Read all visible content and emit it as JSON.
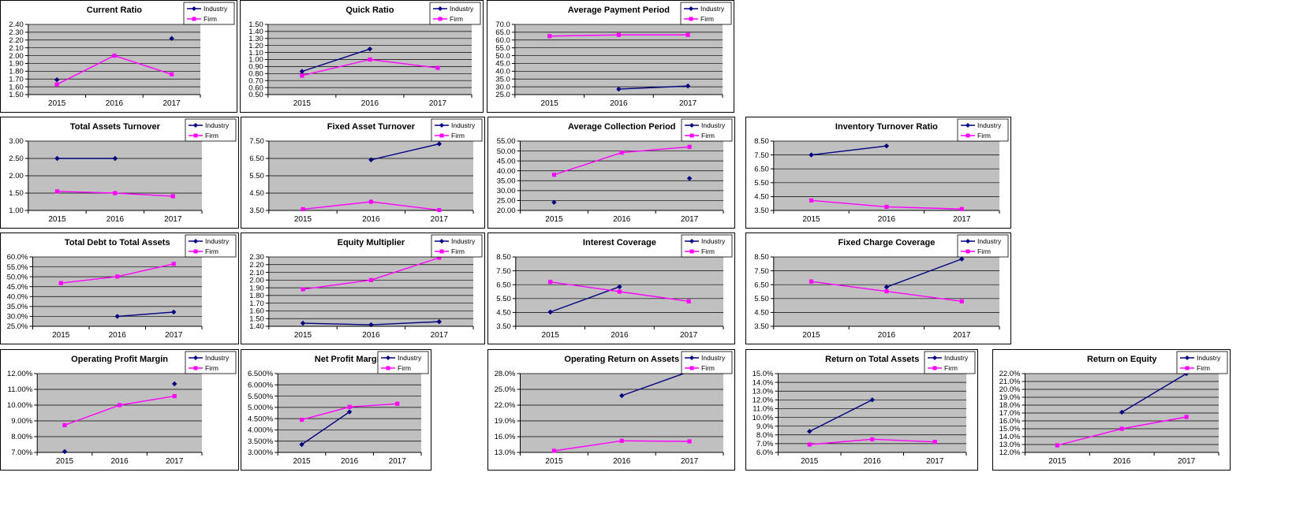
{
  "colors": {
    "industry": "#000080",
    "firm": "#FF00FF",
    "plot_bg": "#C0C0C0",
    "grid": "#000000",
    "panel_border": "#000000",
    "background": "#FFFFFF"
  },
  "legend": {
    "industry_label": "Industry",
    "firm_label": "Firm",
    "position": "top-right"
  },
  "chart_data": [
    {
      "type": "line",
      "title": "Current Ratio",
      "categories": [
        "2015",
        "2016",
        "2017"
      ],
      "series": [
        {
          "name": "Industry",
          "color": "#000080",
          "marker": "diamond",
          "values": [
            1.69,
            null,
            2.22
          ]
        },
        {
          "name": "Firm",
          "color": "#FF00FF",
          "marker": "square",
          "values": [
            1.63,
            2.0,
            1.76
          ]
        }
      ],
      "ylim": [
        1.5,
        2.4
      ],
      "ytick_step": 0.1,
      "tick_format": {
        "decimals": 2,
        "percent": false
      },
      "grid": true,
      "legend_position": "top-right"
    },
    {
      "type": "line",
      "title": "Quick Ratio",
      "categories": [
        "2015",
        "2016",
        "2017"
      ],
      "series": [
        {
          "name": "Industry",
          "color": "#000080",
          "marker": "diamond",
          "values": [
            0.83,
            1.15,
            null
          ]
        },
        {
          "name": "Firm",
          "color": "#FF00FF",
          "marker": "square",
          "values": [
            0.77,
            1.0,
            0.88
          ]
        }
      ],
      "ylim": [
        0.5,
        1.5
      ],
      "ytick_step": 0.1,
      "tick_format": {
        "decimals": 2,
        "percent": false
      },
      "grid": true,
      "legend_position": "top-right"
    },
    {
      "type": "line",
      "title": "Average Payment Period",
      "categories": [
        "2015",
        "2016",
        "2017"
      ],
      "series": [
        {
          "name": "Industry",
          "color": "#000080",
          "marker": "diamond",
          "values": [
            null,
            28.5,
            30.5
          ]
        },
        {
          "name": "Firm",
          "color": "#FF00FF",
          "marker": "square",
          "values": [
            62.5,
            63.3,
            63.3
          ]
        }
      ],
      "ylim": [
        25.0,
        70.0
      ],
      "ytick_step": 5.0,
      "tick_format": {
        "decimals": 1,
        "percent": false
      },
      "grid": true,
      "legend_position": "top-right"
    },
    {
      "type": "line",
      "title": "Total Assets Turnover",
      "categories": [
        "2015",
        "2016",
        "2017"
      ],
      "series": [
        {
          "name": "Industry",
          "color": "#000080",
          "marker": "diamond",
          "values": [
            2.5,
            2.5,
            null
          ]
        },
        {
          "name": "Firm",
          "color": "#FF00FF",
          "marker": "square",
          "values": [
            1.55,
            1.5,
            1.41
          ]
        }
      ],
      "ylim": [
        1.0,
        3.0
      ],
      "ytick_step": 0.5,
      "tick_format": {
        "decimals": 2,
        "percent": false
      },
      "grid": true,
      "legend_position": "top-right"
    },
    {
      "type": "line",
      "title": "Fixed Asset Turnover",
      "categories": [
        "2015",
        "2016",
        "2017"
      ],
      "series": [
        {
          "name": "Industry",
          "color": "#000080",
          "marker": "diamond",
          "values": [
            null,
            6.42,
            7.34
          ]
        },
        {
          "name": "Firm",
          "color": "#FF00FF",
          "marker": "square",
          "values": [
            3.57,
            4.0,
            3.52
          ]
        }
      ],
      "ylim": [
        3.5,
        7.5
      ],
      "ytick_step": 1.0,
      "tick_format": {
        "decimals": 2,
        "percent": false
      },
      "grid": true,
      "legend_position": "top-right"
    },
    {
      "type": "line",
      "title": "Average Collection Period",
      "categories": [
        "2015",
        "2016",
        "2017"
      ],
      "series": [
        {
          "name": "Industry",
          "color": "#000080",
          "marker": "diamond",
          "values": [
            24.1,
            null,
            36.2
          ]
        },
        {
          "name": "Firm",
          "color": "#FF00FF",
          "marker": "square",
          "values": [
            38.0,
            49.2,
            52.1
          ]
        }
      ],
      "ylim": [
        20.0,
        55.0
      ],
      "ytick_step": 5.0,
      "tick_format": {
        "decimals": 2,
        "percent": false
      },
      "grid": true,
      "legend_position": "top-right"
    },
    {
      "type": "line",
      "title": "Inventory Turnover Ratio",
      "categories": [
        "2015",
        "2016",
        "2017"
      ],
      "series": [
        {
          "name": "Industry",
          "color": "#000080",
          "marker": "diamond",
          "values": [
            7.5,
            8.15,
            null
          ]
        },
        {
          "name": "Firm",
          "color": "#FF00FF",
          "marker": "square",
          "values": [
            4.22,
            3.76,
            3.6
          ]
        }
      ],
      "ylim": [
        3.5,
        8.5
      ],
      "ytick_step": 1.0,
      "tick_format": {
        "decimals": 2,
        "percent": false
      },
      "grid": true,
      "legend_position": "top-right"
    },
    {
      "type": "line",
      "title": "Total Debt to Total Assets",
      "categories": [
        "2015",
        "2016",
        "2017"
      ],
      "series": [
        {
          "name": "Industry",
          "color": "#000080",
          "marker": "diamond",
          "values": [
            null,
            30.0,
            32.2
          ]
        },
        {
          "name": "Firm",
          "color": "#FF00FF",
          "marker": "square",
          "values": [
            46.8,
            50.1,
            56.5
          ]
        }
      ],
      "ylim": [
        25.0,
        60.0
      ],
      "ytick_step": 5.0,
      "tick_format": {
        "decimals": 1,
        "percent": true
      },
      "grid": true,
      "legend_position": "top-right"
    },
    {
      "type": "line",
      "title": "Equity Multiplier",
      "categories": [
        "2015",
        "2016",
        "2017"
      ],
      "series": [
        {
          "name": "Industry",
          "color": "#000080",
          "marker": "diamond",
          "values": [
            1.44,
            1.42,
            1.46
          ]
        },
        {
          "name": "Firm",
          "color": "#FF00FF",
          "marker": "square",
          "values": [
            1.88,
            2.0,
            2.29
          ]
        }
      ],
      "ylim": [
        1.4,
        2.3
      ],
      "ytick_step": 0.1,
      "tick_format": {
        "decimals": 2,
        "percent": false
      },
      "grid": true,
      "legend_position": "top-right"
    },
    {
      "type": "line",
      "title": "Interest Coverage",
      "categories": [
        "2015",
        "2016",
        "2017"
      ],
      "series": [
        {
          "name": "Industry",
          "color": "#000080",
          "marker": "diamond",
          "values": [
            4.53,
            6.35,
            null
          ]
        },
        {
          "name": "Firm",
          "color": "#FF00FF",
          "marker": "square",
          "values": [
            6.7,
            6.0,
            5.3
          ]
        }
      ],
      "ylim": [
        3.5,
        8.5
      ],
      "ytick_step": 1.0,
      "tick_format": {
        "decimals": 2,
        "percent": false
      },
      "grid": true,
      "legend_position": "top-right"
    },
    {
      "type": "line",
      "title": "Fixed Charge Coverage",
      "categories": [
        "2015",
        "2016",
        "2017"
      ],
      "series": [
        {
          "name": "Industry",
          "color": "#000080",
          "marker": "diamond",
          "values": [
            null,
            6.33,
            8.35
          ]
        },
        {
          "name": "Firm",
          "color": "#FF00FF",
          "marker": "square",
          "values": [
            6.73,
            6.02,
            5.3
          ]
        }
      ],
      "ylim": [
        3.5,
        8.5
      ],
      "ytick_step": 1.0,
      "tick_format": {
        "decimals": 2,
        "percent": false
      },
      "grid": true,
      "legend_position": "top-right"
    },
    {
      "type": "line",
      "title": "Operating Profit Margin",
      "categories": [
        "2015",
        "2016",
        "2017"
      ],
      "series": [
        {
          "name": "Industry",
          "color": "#000080",
          "marker": "diamond",
          "values": [
            7.05,
            null,
            11.35
          ]
        },
        {
          "name": "Firm",
          "color": "#FF00FF",
          "marker": "square",
          "values": [
            8.73,
            10.0,
            10.57
          ]
        }
      ],
      "ylim": [
        7.0,
        12.0
      ],
      "ytick_step": 1.0,
      "tick_format": {
        "decimals": 2,
        "percent": true
      },
      "grid": true,
      "legend_position": "top-right"
    },
    {
      "type": "line",
      "title": "Net Profit Margin",
      "categories": [
        "2015",
        "2016",
        "2017"
      ],
      "series": [
        {
          "name": "Industry",
          "color": "#000080",
          "marker": "diamond",
          "values": [
            3.35,
            4.8,
            null
          ]
        },
        {
          "name": "Firm",
          "color": "#FF00FF",
          "marker": "square",
          "values": [
            4.45,
            5.02,
            5.16
          ]
        }
      ],
      "ylim": [
        3.0,
        6.5
      ],
      "ytick_step": 0.5,
      "tick_format": {
        "decimals": 3,
        "percent": true
      },
      "grid": true,
      "legend_position": "top-right"
    },
    {
      "type": "line",
      "title": "Operating Return on Assets",
      "categories": [
        "2015",
        "2016",
        "2017"
      ],
      "series": [
        {
          "name": "Industry",
          "color": "#000080",
          "marker": "diamond",
          "values": [
            null,
            23.8,
            28.4
          ]
        },
        {
          "name": "Firm",
          "color": "#FF00FF",
          "marker": "square",
          "values": [
            13.3,
            15.2,
            15.1
          ]
        }
      ],
      "ylim": [
        13.0,
        28.0
      ],
      "ytick_step": 3.0,
      "tick_format": {
        "decimals": 1,
        "percent": true
      },
      "grid": true,
      "legend_position": "top-right"
    },
    {
      "type": "line",
      "title": "Return on Total Assets",
      "categories": [
        "2015",
        "2016",
        "2017"
      ],
      "series": [
        {
          "name": "Industry",
          "color": "#000080",
          "marker": "diamond",
          "values": [
            8.4,
            12.0,
            null
          ]
        },
        {
          "name": "Firm",
          "color": "#FF00FF",
          "marker": "square",
          "values": [
            6.9,
            7.5,
            7.2
          ]
        }
      ],
      "ylim": [
        6.0,
        15.0
      ],
      "ytick_step": 1.0,
      "tick_format": {
        "decimals": 1,
        "percent": true
      },
      "grid": true,
      "legend_position": "top-right"
    },
    {
      "type": "line",
      "title": "Return on Equity",
      "categories": [
        "2015",
        "2016",
        "2017"
      ],
      "series": [
        {
          "name": "Industry",
          "color": "#000080",
          "marker": "diamond",
          "values": [
            null,
            17.1,
            22.0
          ]
        },
        {
          "name": "Firm",
          "color": "#FF00FF",
          "marker": "square",
          "values": [
            12.9,
            15.0,
            16.5
          ]
        }
      ],
      "ylim": [
        12.0,
        22.0
      ],
      "ytick_step": 1.0,
      "tick_format": {
        "decimals": 1,
        "percent": true
      },
      "grid": true,
      "legend_position": "top-right"
    }
  ]
}
